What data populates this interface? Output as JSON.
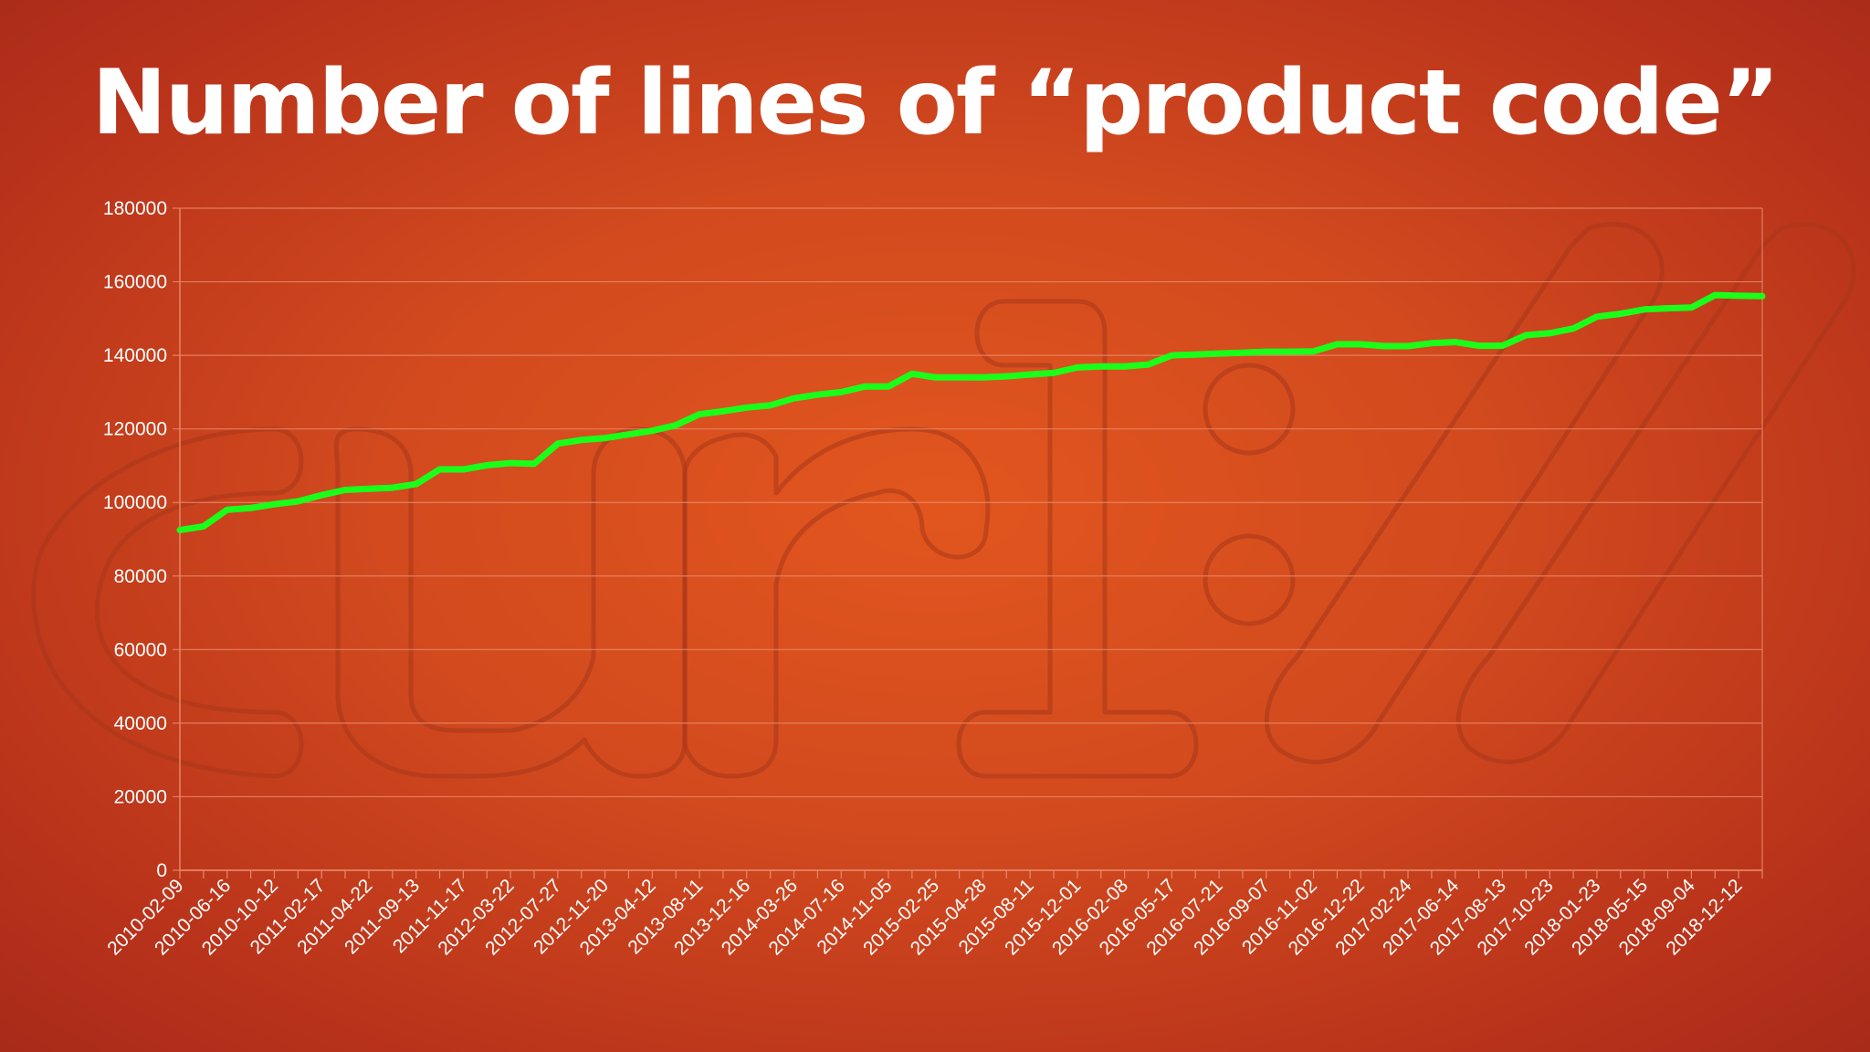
{
  "title": "Number of lines of “product code”",
  "colors": {
    "background": "#d24a1e",
    "line": "#1aff1a",
    "grid": "#e78a6a",
    "text": "#ffffff"
  },
  "watermark_logo": "curl://",
  "chart_data": {
    "type": "line",
    "title": "",
    "xlabel": "",
    "ylabel": "",
    "ylim": [
      0,
      180000
    ],
    "yticks": [
      0,
      20000,
      40000,
      60000,
      80000,
      100000,
      120000,
      140000,
      160000,
      180000
    ],
    "grid": true,
    "legend": "none",
    "categories": [
      "2010-02-09",
      "",
      "2010-06-16",
      "",
      "2010-10-12",
      "",
      "2011-02-17",
      "",
      "2011-04-22",
      "",
      "2011-09-13",
      "",
      "2011-11-17",
      "",
      "2012-03-22",
      "",
      "2012-07-27",
      "",
      "2012-11-20",
      "",
      "2013-04-12",
      "",
      "2013-08-11",
      "",
      "2013-12-16",
      "",
      "2014-03-26",
      "",
      "2014-07-16",
      "",
      "2014-11-05",
      "",
      "2015-02-25",
      "",
      "2015-04-28",
      "",
      "2015-08-11",
      "",
      "2015-12-01",
      "",
      "2016-02-08",
      "",
      "2016-05-17",
      "",
      "2016-07-21",
      "",
      "2016-09-07",
      "",
      "2016-11-02",
      "",
      "2016-12-22",
      "",
      "2017-02-24",
      "",
      "2017-06-14",
      "",
      "2017-08-13",
      "",
      "2017-10-23",
      "",
      "2018-01-23",
      "",
      "2018-05-15",
      "",
      "2018-09-04",
      "",
      "2018-12-12",
      ""
    ],
    "series": [
      {
        "values": [
          92500,
          93500,
          98000,
          98500,
          99500,
          100300,
          102000,
          103400,
          103700,
          104000,
          105000,
          109000,
          109000,
          110100,
          110700,
          110500,
          116000,
          117000,
          117500,
          118500,
          119500,
          121000,
          124000,
          124800,
          125800,
          126400,
          128300,
          129300,
          130000,
          131500,
          131500,
          135000,
          134000,
          134000,
          134000,
          134300,
          134800,
          135200,
          136700,
          137000,
          137000,
          137500,
          140000,
          140200,
          140500,
          140700,
          141000,
          141000,
          141100,
          143000,
          143000,
          142500,
          142500,
          143300,
          143600,
          142600,
          142600,
          145500,
          146000,
          147300,
          150500,
          151300,
          152500,
          152800,
          153000,
          156400,
          156200,
          156100
        ]
      }
    ]
  }
}
